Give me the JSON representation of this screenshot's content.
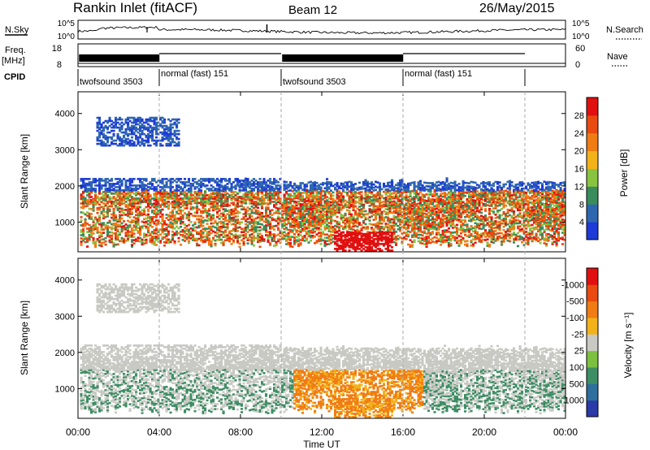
{
  "chart_data": [
    {
      "type": "line",
      "header": {
        "station": "Rankin Inlet (fitACF)",
        "beam": "Beam 12",
        "date": "26/May/2015"
      },
      "nsky_label": "N.Sky",
      "nsearch_label": "N.Search",
      "nsky_ticks": [
        "10^5",
        "10^0"
      ],
      "nsearch_ticks": [
        "10^5",
        "10^0"
      ],
      "freq_label": "Freq.",
      "freq_unit": "[MHz]",
      "freq_ticks": [
        "18",
        "8"
      ],
      "nave_label": "Nave",
      "nave_ticks": [
        "60",
        "0"
      ],
      "cpid_label": "CPID",
      "cpid_segments": [
        {
          "label": "twofsound 3503",
          "start_h": 0.0,
          "end_h": 4.0
        },
        {
          "label": "normal (fast) 151",
          "start_h": 4.0,
          "end_h": 10.0
        },
        {
          "label": "twofsound 3503",
          "start_h": 10.0,
          "end_h": 16.0
        },
        {
          "label": "normal (fast) 151",
          "start_h": 16.0,
          "end_h": 22.0
        }
      ]
    },
    {
      "type": "heatmap",
      "ylabel": "Slant Range [km]",
      "yticks": [
        "1000",
        "2000",
        "3000",
        "4000"
      ],
      "ylim": [
        180,
        4600
      ],
      "colorbar_label": "Power [dB]",
      "colorbar_ticks": [
        "4",
        "8",
        "12",
        "16",
        "20",
        "24",
        "28"
      ],
      "colors": [
        "#1e3ad8",
        "#2e67b0",
        "#3a8c5c",
        "#88c440",
        "#f2b21a",
        "#f07c14",
        "#e84a10",
        "#e01010"
      ]
    },
    {
      "type": "heatmap",
      "ylabel": "Slant Range [km]",
      "yticks": [
        "1000",
        "2000",
        "3000",
        "4000"
      ],
      "ylim": [
        180,
        4600
      ],
      "colorbar_label": "Velocity [m s⁻¹]",
      "colorbar_ticks": [
        "1000",
        "500",
        "100",
        "25",
        "-25",
        "-100",
        "-500",
        "-1000"
      ],
      "colors": [
        "#2a3aa8",
        "#2e6f9e",
        "#3e8e64",
        "#7dc040",
        "#c9c9c4",
        "#f2b21a",
        "#f07c14",
        "#e84a10",
        "#e01010"
      ]
    }
  ],
  "time_axis": {
    "xlabel": "Time UT",
    "ticks": [
      "00:00",
      "04:00",
      "08:00",
      "12:00",
      "16:00",
      "20:00",
      "00:00"
    ],
    "xlim_hours": [
      0,
      24
    ]
  }
}
